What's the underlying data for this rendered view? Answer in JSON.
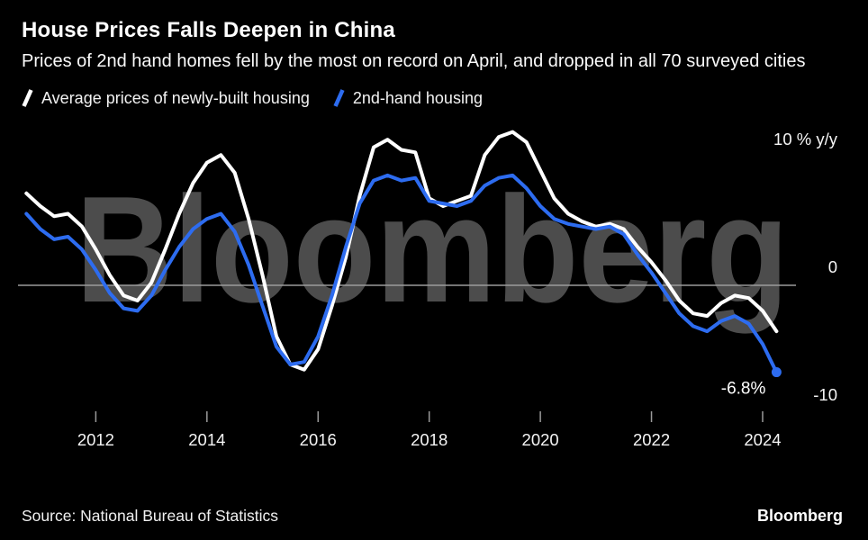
{
  "watermark": "Bloomberg",
  "colors": {
    "background": "#000000",
    "watermark": "#4c4c4c",
    "zero_line": "#9b9b9b",
    "axis_text": "#f5f5f5",
    "white_line": "#ffffff",
    "blue_line": "#2d6cf0"
  },
  "footer": {
    "source": "Source: National Bureau of Statistics",
    "brand": "Bloomberg"
  },
  "chart_data": {
    "type": "line",
    "title": "House Prices Falls Deepen in China",
    "subtitle": "Prices of 2nd hand homes fell by the most on record on April, and dropped in all 70 surveyed cities",
    "ylabel": "% y/y",
    "xlim": [
      2010.6,
      2024.6
    ],
    "ylim": [
      -11,
      13
    ],
    "grid": false,
    "zero_line": true,
    "legend_position": "top",
    "x_ticks": [
      2012,
      2014,
      2016,
      2018,
      2020,
      2022,
      2024
    ],
    "y_ticks": [
      {
        "value": 10,
        "label": "10 % y/y"
      },
      {
        "value": 0,
        "label": "0"
      },
      {
        "value": -10,
        "label": "-10"
      }
    ],
    "x": [
      2010.75,
      2011,
      2011.25,
      2011.5,
      2011.75,
      2012,
      2012.25,
      2012.5,
      2012.75,
      2013,
      2013.25,
      2013.5,
      2013.75,
      2014,
      2014.25,
      2014.5,
      2014.75,
      2015,
      2015.25,
      2015.5,
      2015.75,
      2016,
      2016.25,
      2016.5,
      2016.75,
      2017,
      2017.25,
      2017.5,
      2017.75,
      2018,
      2018.25,
      2018.5,
      2018.75,
      2019,
      2019.25,
      2019.5,
      2019.75,
      2020,
      2020.25,
      2020.5,
      2020.75,
      2021,
      2021.25,
      2021.5,
      2021.75,
      2022,
      2022.25,
      2022.5,
      2022.75,
      2023,
      2023.25,
      2023.5,
      2023.75,
      2024,
      2024.25
    ],
    "series": [
      {
        "key": "newly-built",
        "name": "Average prices of newly-built housing",
        "color": "#ffffff",
        "values": [
          7.2,
          6.2,
          5.4,
          5.6,
          4.6,
          2.8,
          0.8,
          -0.8,
          -1.2,
          0.2,
          2.8,
          5.6,
          8.0,
          9.6,
          10.2,
          8.8,
          5.2,
          0.8,
          -4.0,
          -6.2,
          -6.6,
          -5.0,
          -1.6,
          2.2,
          7.0,
          10.8,
          11.4,
          10.6,
          10.4,
          6.8,
          6.2,
          6.6,
          7.0,
          10.2,
          11.6,
          12.0,
          11.2,
          9.0,
          6.8,
          5.6,
          5.0,
          4.6,
          4.8,
          4.4,
          3.0,
          1.8,
          0.4,
          -1.2,
          -2.2,
          -2.4,
          -1.4,
          -0.8,
          -1.0,
          -2.0,
          -3.6
        ]
      },
      {
        "key": "second-hand",
        "name": "2nd-hand housing",
        "color": "#2d6cf0",
        "end_dot": true,
        "values": [
          5.6,
          4.4,
          3.6,
          3.8,
          2.8,
          1.2,
          -0.6,
          -1.8,
          -2.0,
          -0.8,
          1.2,
          3.0,
          4.4,
          5.2,
          5.6,
          4.2,
          1.6,
          -1.6,
          -4.8,
          -6.2,
          -6.0,
          -4.0,
          -0.8,
          3.0,
          6.4,
          8.2,
          8.6,
          8.2,
          8.4,
          6.6,
          6.4,
          6.2,
          6.6,
          7.8,
          8.4,
          8.6,
          7.6,
          6.2,
          5.2,
          4.8,
          4.6,
          4.4,
          4.6,
          4.0,
          2.4,
          1.0,
          -0.6,
          -2.2,
          -3.2,
          -3.6,
          -2.8,
          -2.4,
          -3.0,
          -4.6,
          -6.8
        ]
      }
    ],
    "annotation": {
      "text": "-6.8%",
      "x": 2024.25,
      "y": -6.8
    }
  }
}
